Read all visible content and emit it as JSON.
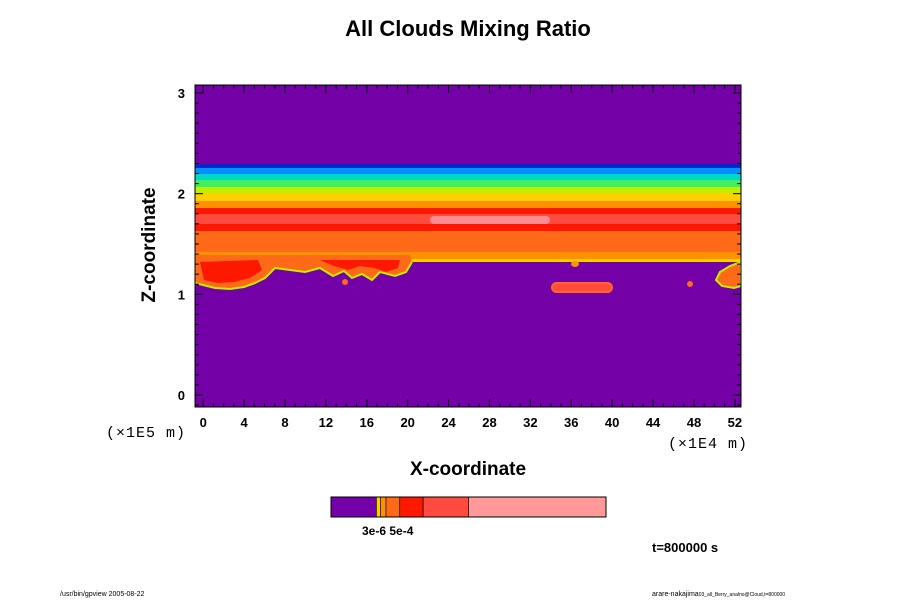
{
  "chart_data": {
    "type": "heatmap",
    "title": "All Clouds Mixing Ratio",
    "xlabel": "X-coordinate",
    "ylabel": "Z-coordinate",
    "x_unit": "(×1E4 m)",
    "y_unit": "(×1E5 m)",
    "x_ticks": [
      "0",
      "4",
      "8",
      "12",
      "16",
      "20",
      "24",
      "28",
      "32",
      "36",
      "40",
      "44",
      "48",
      "52"
    ],
    "y_ticks": [
      "0",
      "1",
      "2",
      "3"
    ],
    "xlim": [
      -0.8,
      52.6
    ],
    "ylim": [
      -0.12,
      3.08
    ],
    "colors": {
      "background": "#7400a8",
      "levels": [
        "#0028c8",
        "#0090ff",
        "#00d8c0",
        "#40f060",
        "#c0f000",
        "#ffd000",
        "#ff9000",
        "#ff6a18",
        "#ff1800",
        "#ff4a40",
        "#ff8c90"
      ]
    },
    "colorbar": {
      "segment_colors": [
        "#7400a8",
        "#ffd000",
        "#ff9000",
        "#ff6a18",
        "#ff1800",
        "#ff4a40",
        "#ff9999"
      ],
      "segment_fractions": [
        0.165,
        0.015,
        0.02,
        0.05,
        0.085,
        0.165,
        0.5
      ],
      "label": "3e-6 5e-4"
    },
    "time_label": "t=800000 s",
    "footer_left": "/usr/bin/gpview 2005-08-22",
    "footer_right_main": "arare-nakajima",
    "footer_right_small": "03_all_Berry_analno@Cloud,t=800000"
  }
}
